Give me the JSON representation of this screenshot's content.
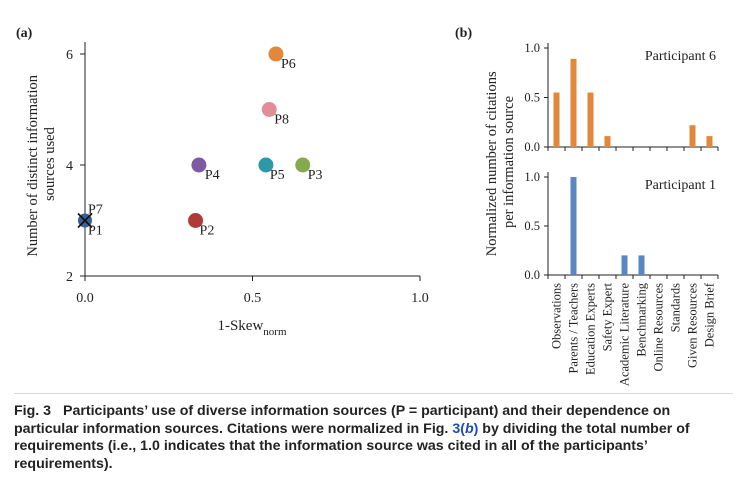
{
  "figure": {
    "panel_a_label": "(a)",
    "panel_b_label": "(b)",
    "caption": {
      "label": "Fig. 3",
      "text_before": "Participants’ use of diverse information sources (P = participant) and their dependence on particular information sources. Citations were normalized in Fig. ",
      "link_num": "3(",
      "link_letter": "b",
      "link_close": ")",
      "text_after": " by dividing the total number of requirements (i.e., 1.0 indicates that the information source was cited in all of the participants’ requirements)."
    }
  },
  "chart_data": [
    {
      "type": "scatter",
      "panel": "(a)",
      "xlabel": "1-Skew",
      "xlabel_sub": "norm",
      "ylabel_lines": [
        "Number of distinct information",
        "sources used"
      ],
      "xlim": [
        0,
        1.0
      ],
      "ylim": [
        2,
        6
      ],
      "xticks": [
        "0.0",
        "0.5",
        "1.0"
      ],
      "yticks": [
        "2",
        "4",
        "6"
      ],
      "points": [
        {
          "label": "P1",
          "x": 0.0,
          "y": 3,
          "color": "#3a5f95",
          "marker": "x-circle"
        },
        {
          "label": "P7",
          "x": 0.0,
          "y": 3,
          "color": "#3a5f95",
          "marker": "x-circle"
        },
        {
          "label": "P2",
          "x": 0.33,
          "y": 3,
          "color": "#b03a3a"
        },
        {
          "label": "P3",
          "x": 0.65,
          "y": 4,
          "color": "#84aa4c"
        },
        {
          "label": "P4",
          "x": 0.34,
          "y": 4,
          "color": "#7d5ba2"
        },
        {
          "label": "P5",
          "x": 0.54,
          "y": 4,
          "color": "#2e97a8"
        },
        {
          "label": "P6",
          "x": 0.57,
          "y": 6,
          "color": "#e3873a"
        },
        {
          "label": "P8",
          "x": 0.55,
          "y": 5,
          "color": "#e38d97"
        }
      ],
      "grid": false
    },
    {
      "type": "bar",
      "panel": "(b)",
      "ylabel_lines": [
        "Normalized number of citations",
        "per information source"
      ],
      "categories": [
        "Observations",
        "Parents / Teachers",
        "Education Experts",
        "Safety Expert",
        "Academic Literature",
        "Benchmarking",
        "Online Resources",
        "Standards",
        "Given Resources",
        "Design Brief"
      ],
      "yticks": [
        "0.0",
        "0.5",
        "1.0"
      ],
      "ylim": [
        0,
        1.0
      ],
      "series": [
        {
          "name": "Participant 6",
          "color": "#e3873a",
          "values": [
            0.55,
            0.89,
            0.55,
            0.11,
            0,
            0,
            0,
            0,
            0.22,
            0.11
          ]
        },
        {
          "name": "Participant 1",
          "color": "#5a87c4",
          "values": [
            0,
            1.0,
            0,
            0,
            0.2,
            0.2,
            0,
            0,
            0,
            0
          ]
        }
      ],
      "grid": false
    }
  ]
}
